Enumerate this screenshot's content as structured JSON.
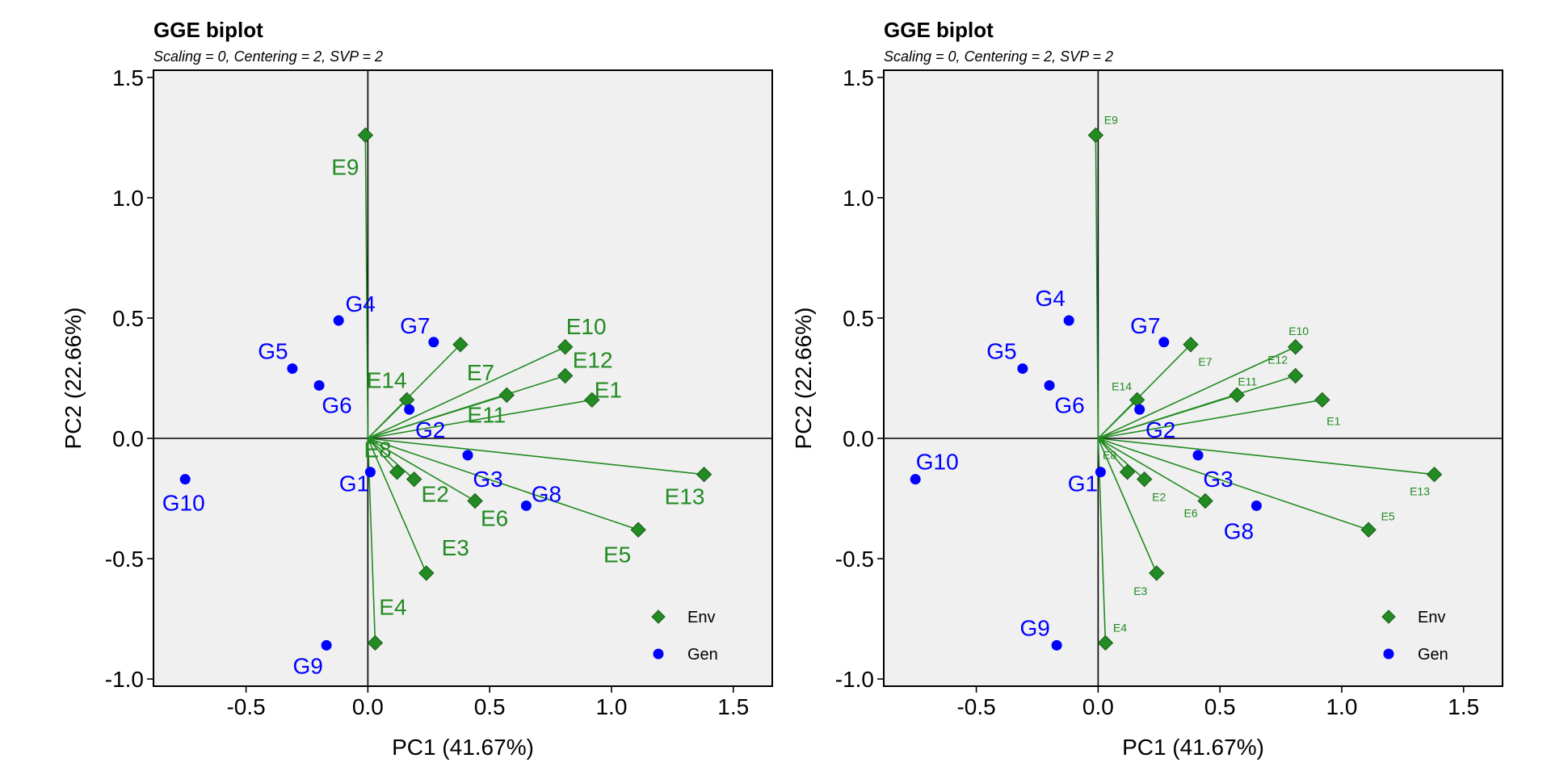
{
  "colors": {
    "env": "#228B22",
    "gen": "#0000FF",
    "panel_bg": "#F0F0F0"
  },
  "chart_data": [
    {
      "type": "scatter",
      "title": "GGE biplot",
      "subtitle": "Scaling = 0, Centering = 2, SVP = 2",
      "xlabel": "PC1 (41.67%)",
      "ylabel": "PC2 (22.66%)",
      "xlim": [
        -0.88,
        1.66
      ],
      "ylim": [
        -1.03,
        1.53
      ],
      "xticks": [
        "-0.5",
        "0.0",
        "0.5",
        "1.0",
        "1.5"
      ],
      "yticks": [
        "-1.0",
        "-0.5",
        "0.0",
        "0.5",
        "1.0",
        "1.5"
      ],
      "grid": false,
      "legend_position": "bottom-right",
      "legend": [
        "Env",
        "Gen"
      ],
      "env_label_size": "large",
      "series": [
        {
          "name": "Env",
          "marker": "diamond",
          "vectors_from_origin": true,
          "points": [
            {
              "label": "E1",
              "x": 0.92,
              "y": 0.16
            },
            {
              "label": "E2",
              "x": 0.19,
              "y": -0.17
            },
            {
              "label": "E3",
              "x": 0.24,
              "y": -0.56
            },
            {
              "label": "E4",
              "x": 0.03,
              "y": -0.85
            },
            {
              "label": "E5",
              "x": 1.11,
              "y": -0.38
            },
            {
              "label": "E6",
              "x": 0.44,
              "y": -0.26
            },
            {
              "label": "E7",
              "x": 0.38,
              "y": 0.39
            },
            {
              "label": "E8",
              "x": 0.12,
              "y": -0.14
            },
            {
              "label": "E9",
              "x": -0.01,
              "y": 1.26
            },
            {
              "label": "E10",
              "x": 0.81,
              "y": 0.38
            },
            {
              "label": "E11",
              "x": 0.57,
              "y": 0.18
            },
            {
              "label": "E12",
              "x": 0.81,
              "y": 0.26
            },
            {
              "label": "E13",
              "x": 1.38,
              "y": -0.15
            },
            {
              "label": "E14",
              "x": 0.16,
              "y": 0.16
            }
          ]
        },
        {
          "name": "Gen",
          "marker": "circle",
          "vectors_from_origin": false,
          "points": [
            {
              "label": "G1",
              "x": 0.01,
              "y": -0.14
            },
            {
              "label": "G2",
              "x": 0.17,
              "y": 0.12
            },
            {
              "label": "G3",
              "x": 0.41,
              "y": -0.07
            },
            {
              "label": "G4",
              "x": -0.12,
              "y": 0.49
            },
            {
              "label": "G5",
              "x": -0.31,
              "y": 0.29
            },
            {
              "label": "G6",
              "x": -0.2,
              "y": 0.22
            },
            {
              "label": "G7",
              "x": 0.27,
              "y": 0.4
            },
            {
              "label": "G8",
              "x": 0.65,
              "y": -0.28
            },
            {
              "label": "G9",
              "x": -0.17,
              "y": -0.86
            },
            {
              "label": "G10",
              "x": -0.75,
              "y": -0.17
            }
          ]
        }
      ]
    },
    {
      "type": "scatter",
      "title": "GGE biplot",
      "subtitle": "Scaling = 0, Centering = 2, SVP = 2",
      "xlabel": "PC1 (41.67%)",
      "ylabel": "PC2 (22.66%)",
      "xlim": [
        -0.88,
        1.66
      ],
      "ylim": [
        -1.03,
        1.53
      ],
      "xticks": [
        "-0.5",
        "0.0",
        "0.5",
        "1.0",
        "1.5"
      ],
      "yticks": [
        "-1.0",
        "-0.5",
        "0.0",
        "0.5",
        "1.0",
        "1.5"
      ],
      "grid": false,
      "legend_position": "bottom-right",
      "legend": [
        "Env",
        "Gen"
      ],
      "env_label_size": "small",
      "series": [
        {
          "name": "Env",
          "marker": "diamond",
          "vectors_from_origin": true,
          "points": [
            {
              "label": "E1",
              "x": 0.92,
              "y": 0.16
            },
            {
              "label": "E2",
              "x": 0.19,
              "y": -0.17
            },
            {
              "label": "E3",
              "x": 0.24,
              "y": -0.56
            },
            {
              "label": "E4",
              "x": 0.03,
              "y": -0.85
            },
            {
              "label": "E5",
              "x": 1.11,
              "y": -0.38
            },
            {
              "label": "E6",
              "x": 0.44,
              "y": -0.26
            },
            {
              "label": "E7",
              "x": 0.38,
              "y": 0.39
            },
            {
              "label": "E8",
              "x": 0.12,
              "y": -0.14
            },
            {
              "label": "E9",
              "x": -0.01,
              "y": 1.26
            },
            {
              "label": "E10",
              "x": 0.81,
              "y": 0.38
            },
            {
              "label": "E11",
              "x": 0.57,
              "y": 0.18
            },
            {
              "label": "E12",
              "x": 0.81,
              "y": 0.26
            },
            {
              "label": "E13",
              "x": 1.38,
              "y": -0.15
            },
            {
              "label": "E14",
              "x": 0.16,
              "y": 0.16
            }
          ]
        },
        {
          "name": "Gen",
          "marker": "circle",
          "vectors_from_origin": false,
          "points": [
            {
              "label": "G1",
              "x": 0.01,
              "y": -0.14
            },
            {
              "label": "G2",
              "x": 0.17,
              "y": 0.12
            },
            {
              "label": "G3",
              "x": 0.41,
              "y": -0.07
            },
            {
              "label": "G4",
              "x": -0.12,
              "y": 0.49
            },
            {
              "label": "G5",
              "x": -0.31,
              "y": 0.29
            },
            {
              "label": "G6",
              "x": -0.2,
              "y": 0.22
            },
            {
              "label": "G7",
              "x": 0.27,
              "y": 0.4
            },
            {
              "label": "G8",
              "x": 0.65,
              "y": -0.28
            },
            {
              "label": "G9",
              "x": -0.17,
              "y": -0.86
            },
            {
              "label": "G10",
              "x": -0.75,
              "y": -0.17
            }
          ]
        }
      ]
    }
  ]
}
